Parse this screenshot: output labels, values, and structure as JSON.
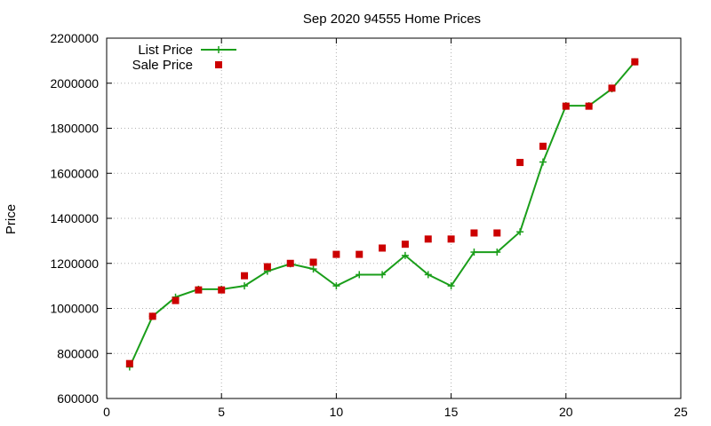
{
  "chart_data": {
    "type": "line",
    "title": "Sep 2020 94555 Home Prices",
    "xlabel": "",
    "ylabel": "Price",
    "xlim": [
      0,
      25
    ],
    "ylim": [
      600000,
      2200000
    ],
    "xticks": [
      0,
      5,
      10,
      15,
      20,
      25
    ],
    "yticks": [
      600000,
      800000,
      1000000,
      1200000,
      1400000,
      1600000,
      1800000,
      2000000,
      2200000
    ],
    "grid": true,
    "legend_position": "top-left",
    "series": [
      {
        "name": "List Price",
        "style": "line-with-plus-markers",
        "color": "#1a9e1a",
        "x": [
          1,
          2,
          3,
          4,
          5,
          6,
          7,
          8,
          9,
          10,
          11,
          12,
          13,
          14,
          15,
          16,
          17,
          18,
          19,
          20,
          21,
          22,
          23
        ],
        "values": [
          740000,
          965000,
          1050000,
          1085000,
          1085000,
          1100000,
          1165000,
          1198000,
          1175000,
          1100000,
          1150000,
          1150000,
          1235000,
          1150000,
          1100000,
          1250000,
          1250000,
          1340000,
          1650000,
          1900000,
          1900000,
          1975000,
          2095000
        ]
      },
      {
        "name": "Sale Price",
        "style": "square-markers",
        "color": "#cc0000",
        "x": [
          1,
          2,
          3,
          4,
          5,
          6,
          7,
          8,
          9,
          10,
          11,
          12,
          13,
          14,
          15,
          16,
          17,
          18,
          19,
          20,
          21,
          22,
          23
        ],
        "values": [
          755000,
          965000,
          1035000,
          1082000,
          1082000,
          1145000,
          1185000,
          1200000,
          1205000,
          1240000,
          1240000,
          1268000,
          1285000,
          1308000,
          1308000,
          1335000,
          1335000,
          1648000,
          1720000,
          1898000,
          1898000,
          1978000,
          2095000
        ]
      }
    ]
  }
}
